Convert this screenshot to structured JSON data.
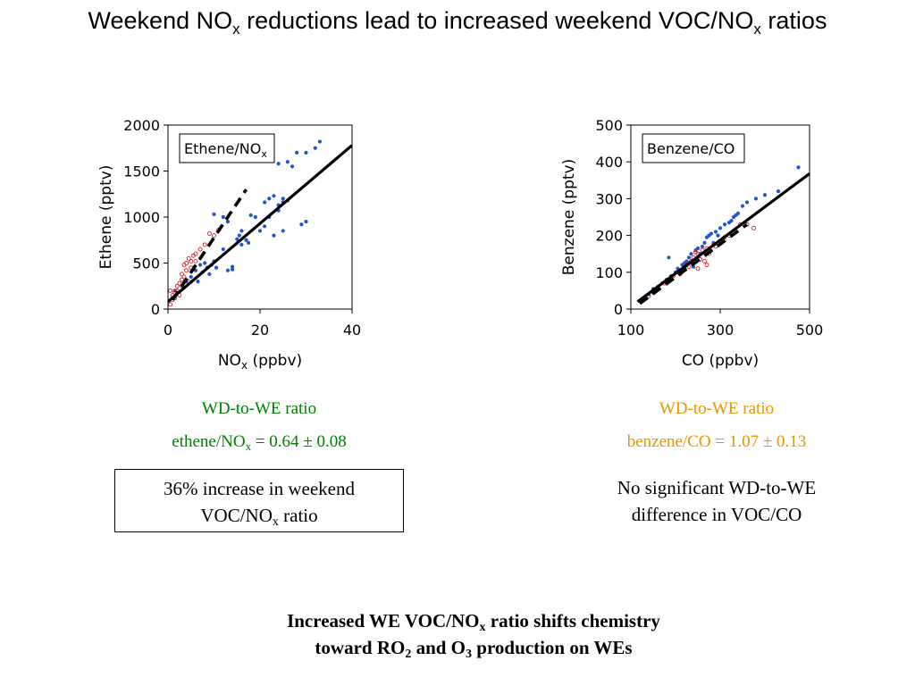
{
  "title": {
    "prefix": "Weekend NO",
    "sub": "x",
    "middle": " reductions lead to increased weekend VOC/NO",
    "sub2": "x",
    "suffix": " ratios"
  },
  "colors": {
    "weekday": "#2255cc",
    "weekend": "#cc2222",
    "green": "#008000",
    "orange": "#e69500"
  },
  "chart_data": [
    {
      "type": "scatter",
      "title": "",
      "legend_label": {
        "main": "Ethene/NO",
        "sub": "x"
      },
      "xlabel": {
        "main": "NO",
        "sub": "x",
        "rest": " (ppbv)"
      },
      "ylabel": "Ethene (pptv)",
      "xlim": [
        0,
        40
      ],
      "ylim": [
        0,
        2000
      ],
      "xticks": [
        "0",
        "20",
        "40"
      ],
      "yticks": [
        "0",
        "500",
        "1000",
        "1500",
        "2000"
      ],
      "xtick_values": [
        0,
        20,
        40
      ],
      "ytick_values": [
        0,
        500,
        1000,
        1500,
        2000
      ],
      "grid": false,
      "legend_position": "top-left",
      "series": [
        {
          "style": "weekday-dots",
          "points": [
            [
              1,
              120
            ],
            [
              1.5,
              200
            ],
            [
              2,
              180
            ],
            [
              3,
              250
            ],
            [
              4,
              300
            ],
            [
              5,
              350
            ],
            [
              6,
              420
            ],
            [
              6.5,
              300
            ],
            [
              7,
              480
            ],
            [
              7.5,
              400
            ],
            [
              8,
              500
            ],
            [
              8.5,
              450
            ],
            [
              9,
              380
            ],
            [
              9.5,
              480
            ],
            [
              10,
              520
            ],
            [
              10.5,
              450
            ],
            [
              10,
              1030
            ],
            [
              12,
              650
            ],
            [
              12,
              1000
            ],
            [
              13,
              420
            ],
            [
              13,
              950
            ],
            [
              14,
              460
            ],
            [
              14,
              430
            ],
            [
              15,
              760
            ],
            [
              15.5,
              800
            ],
            [
              16,
              850
            ],
            [
              16,
              700
            ],
            [
              17,
              750
            ],
            [
              17.5,
              720
            ],
            [
              18,
              1020
            ],
            [
              19,
              1000
            ],
            [
              20,
              850
            ],
            [
              21,
              900
            ],
            [
              21,
              1160
            ],
            [
              22,
              1200
            ],
            [
              22,
              1000
            ],
            [
              23,
              1230
            ],
            [
              23,
              800
            ],
            [
              24,
              1070
            ],
            [
              24,
              1130
            ],
            [
              24,
              1580
            ],
            [
              25,
              850
            ],
            [
              25,
              1160
            ],
            [
              25,
              1200
            ],
            [
              26,
              1180
            ],
            [
              26,
              1600
            ],
            [
              27,
              1550
            ],
            [
              28,
              1700
            ],
            [
              29,
              920
            ],
            [
              30,
              950
            ],
            [
              30,
              1700
            ],
            [
              32,
              1750
            ],
            [
              33,
              1820
            ]
          ]
        },
        {
          "style": "weekend-circles",
          "points": [
            [
              0.5,
              50
            ],
            [
              1,
              100
            ],
            [
              1,
              150
            ],
            [
              1.5,
              180
            ],
            [
              1.5,
              120
            ],
            [
              2,
              250
            ],
            [
              2,
              200
            ],
            [
              2.5,
              280
            ],
            [
              3,
              320
            ],
            [
              3,
              380
            ],
            [
              3.5,
              350
            ],
            [
              3.5,
              480
            ],
            [
              4,
              420
            ],
            [
              4,
              500
            ],
            [
              4.5,
              550
            ],
            [
              5,
              450
            ],
            [
              5,
              520
            ],
            [
              5.5,
              580
            ],
            [
              6,
              600
            ],
            [
              6,
              520
            ],
            [
              7,
              650
            ],
            [
              8,
              700
            ],
            [
              9,
              820
            ],
            [
              10,
              800
            ],
            [
              11,
              860
            ],
            [
              0.5,
              200
            ],
            [
              2.5,
              150
            ],
            [
              4.5,
              300
            ]
          ]
        },
        {
          "style": "fit-solid",
          "points": [
            [
              0,
              80
            ],
            [
              40,
              1780
            ]
          ]
        },
        {
          "style": "fit-dashed",
          "points": [
            [
              1,
              100
            ],
            [
              17,
              1300
            ]
          ]
        }
      ]
    },
    {
      "type": "scatter",
      "title": "",
      "legend_label": {
        "main": "Benzene/CO",
        "sub": ""
      },
      "xlabel": {
        "main": "CO (ppbv)",
        "sub": "",
        "rest": ""
      },
      "ylabel": "Benzene (pptv)",
      "xlim": [
        100,
        500
      ],
      "ylim": [
        0,
        500
      ],
      "xticks": [
        "100",
        "300",
        "500"
      ],
      "yticks": [
        "0",
        "100",
        "200",
        "300",
        "400",
        "500"
      ],
      "xtick_values": [
        100,
        300,
        500
      ],
      "ytick_values": [
        0,
        100,
        200,
        300,
        400,
        500
      ],
      "grid": false,
      "legend_position": "top-left",
      "series": [
        {
          "style": "weekday-dots",
          "points": [
            [
              130,
              30
            ],
            [
              140,
              40
            ],
            [
              150,
              55
            ],
            [
              160,
              60
            ],
            [
              170,
              70
            ],
            [
              180,
              80
            ],
            [
              185,
              140
            ],
            [
              190,
              90
            ],
            [
              200,
              100
            ],
            [
              205,
              110
            ],
            [
              210,
              105
            ],
            [
              215,
              120
            ],
            [
              220,
              125
            ],
            [
              225,
              130
            ],
            [
              230,
              140
            ],
            [
              235,
              150
            ],
            [
              240,
              115
            ],
            [
              245,
              160
            ],
            [
              250,
              165
            ],
            [
              255,
              150
            ],
            [
              260,
              170
            ],
            [
              265,
              180
            ],
            [
              270,
              195
            ],
            [
              275,
              200
            ],
            [
              280,
              205
            ],
            [
              285,
              180
            ],
            [
              290,
              210
            ],
            [
              295,
              200
            ],
            [
              300,
              220
            ],
            [
              310,
              230
            ],
            [
              320,
              235
            ],
            [
              325,
              240
            ],
            [
              330,
              250
            ],
            [
              335,
              255
            ],
            [
              340,
              260
            ],
            [
              350,
              280
            ],
            [
              360,
              290
            ],
            [
              380,
              300
            ],
            [
              400,
              310
            ],
            [
              430,
              320
            ],
            [
              475,
              385
            ]
          ]
        },
        {
          "style": "weekend-circles",
          "points": [
            [
              140,
              35
            ],
            [
              150,
              45
            ],
            [
              160,
              55
            ],
            [
              175,
              70
            ],
            [
              185,
              80
            ],
            [
              195,
              90
            ],
            [
              205,
              100
            ],
            [
              210,
              95
            ],
            [
              220,
              110
            ],
            [
              225,
              120
            ],
            [
              230,
              115
            ],
            [
              235,
              130
            ],
            [
              240,
              140
            ],
            [
              245,
              155
            ],
            [
              250,
              150
            ],
            [
              255,
              135
            ],
            [
              260,
              160
            ],
            [
              265,
              130
            ],
            [
              270,
              165
            ],
            [
              275,
              150
            ],
            [
              285,
              175
            ],
            [
              290,
              170
            ],
            [
              300,
              185
            ],
            [
              310,
              195
            ],
            [
              320,
              200
            ],
            [
              330,
              210
            ],
            [
              345,
              230
            ],
            [
              360,
              230
            ],
            [
              375,
              220
            ],
            [
              250,
              110
            ],
            [
              270,
              120
            ]
          ]
        },
        {
          "style": "fit-solid",
          "points": [
            [
              115,
              20
            ],
            [
              500,
              368
            ]
          ]
        },
        {
          "style": "fit-dashed",
          "points": [
            [
              120,
              15
            ],
            [
              360,
              230
            ]
          ]
        }
      ]
    }
  ],
  "left_caption": {
    "line1": "WD-to-WE ratio",
    "ratio_main": "ethene/NO",
    "ratio_sub": "x",
    "ratio_rest": " = 0.64 ± 0.08"
  },
  "right_caption": {
    "line1": "WD-to-WE ratio",
    "ratio": "benzene/CO = 1.07 ± 0.13"
  },
  "left_box": {
    "line1": "36% increase in weekend",
    "line2_main": "VOC/NO",
    "line2_sub": "x",
    "line2_rest": " ratio"
  },
  "right_note": {
    "line1": "No significant WD-to-WE",
    "line2": "difference in VOC/CO"
  },
  "conclusion": {
    "p1": "Increased WE VOC/NO",
    "s1": "x",
    "p2": " ratio shifts chemistry",
    "p3": "toward RO",
    "s2": "2",
    "p4": " and O",
    "s3": "3",
    "p5": " production on WEs"
  }
}
